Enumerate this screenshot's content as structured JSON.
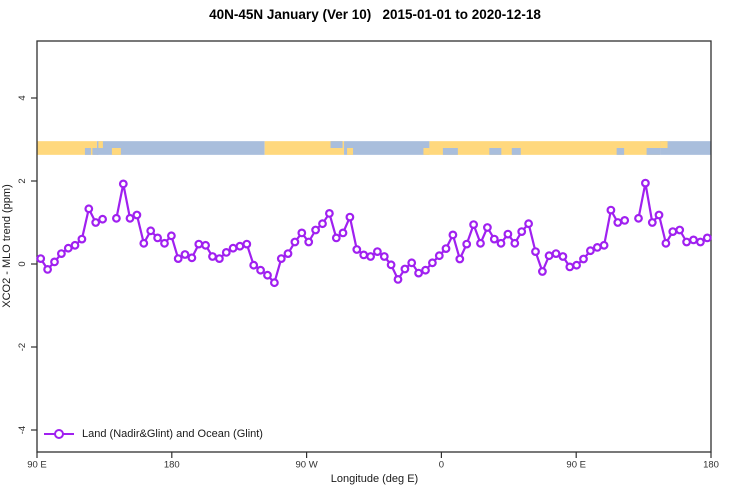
{
  "title": "40N-45N January (Ver 10)   2015-01-01 to 2020-12-18",
  "legend": {
    "label": "Land (Nadir&Glint) and Ocean (Glint)"
  },
  "colors": {
    "series": "#A020F0",
    "land": "#FFD87D",
    "ocean": "#A9BEDC",
    "axis": "#303030",
    "background": "#ffffff"
  },
  "chart_data": {
    "type": "line",
    "title": "40N-45N January (Ver 10)   2015-01-01 to 2020-12-18",
    "xlabel": "Longitude (deg E)",
    "ylabel": "XCO2 - MLO trend (ppm)",
    "xlim": [
      90,
      540
    ],
    "ylim": [
      -4.5,
      5.4
    ],
    "grid": false,
    "legend_position": "bottom-left-inside",
    "x_ticks": [
      {
        "value": 90,
        "label": "90 E"
      },
      {
        "value": 180,
        "label": "180"
      },
      {
        "value": 270,
        "label": "90 W"
      },
      {
        "value": 360,
        "label": "0"
      },
      {
        "value": 450,
        "label": "90 E"
      },
      {
        "value": 540,
        "label": "180"
      }
    ],
    "y_ticks": [
      {
        "value": 4,
        "label": "4"
      },
      {
        "value": 2,
        "label": "2"
      },
      {
        "value": 0,
        "label": "0"
      },
      {
        "value": -2,
        "label": "-2"
      },
      {
        "value": -4,
        "label": "-4"
      }
    ],
    "series": [
      {
        "name": "Land (Nadir&Glint) and Ocean (Glint)",
        "color": "#A020F0",
        "marker": "open-circle",
        "x": [
          92.5,
          97.1,
          101.7,
          106.3,
          110.9,
          115.4,
          120.0,
          124.6,
          129.2,
          133.8,
          138.4,
          143.0,
          147.6,
          152.1,
          156.7,
          161.3,
          165.9,
          170.5,
          175.1,
          179.7,
          184.3,
          188.8,
          193.4,
          198.0,
          202.6,
          207.2,
          211.8,
          216.4,
          220.9,
          225.5,
          230.1,
          234.7,
          239.3,
          243.9,
          248.5,
          253.1,
          257.6,
          262.2,
          266.8,
          271.4,
          276.0,
          280.6,
          285.2,
          289.8,
          294.3,
          298.9,
          303.5,
          308.1,
          312.7,
          317.3,
          321.9,
          326.4,
          331.0,
          335.6,
          340.2,
          344.8,
          349.4,
          354.0,
          358.6,
          363.1,
          367.7,
          372.3,
          376.9,
          381.5,
          386.1,
          390.7,
          395.3,
          399.8,
          404.4,
          409.0,
          413.6,
          418.2,
          422.8,
          427.4,
          431.9,
          436.5,
          441.1,
          445.7,
          450.3,
          454.9,
          459.5,
          464.1,
          468.6,
          473.2,
          477.8,
          482.4,
          487.0,
          491.6,
          496.2,
          500.8,
          505.3,
          509.9,
          514.5,
          519.1,
          523.7,
          528.3,
          532.9,
          537.5
        ],
        "y": [
          0.13,
          -0.13,
          0.05,
          0.25,
          0.38,
          0.45,
          0.6,
          1.33,
          1.0,
          1.08,
          null,
          1.1,
          1.93,
          1.1,
          1.18,
          0.5,
          0.8,
          0.63,
          0.5,
          0.68,
          0.13,
          0.23,
          0.15,
          0.48,
          0.45,
          0.18,
          0.13,
          0.28,
          0.38,
          0.43,
          0.48,
          -0.03,
          -0.15,
          -0.27,
          -0.45,
          0.13,
          0.25,
          0.53,
          0.75,
          0.53,
          0.82,
          0.97,
          1.22,
          0.63,
          0.75,
          1.13,
          0.35,
          0.22,
          0.18,
          0.3,
          0.18,
          -0.02,
          -0.37,
          -0.12,
          0.03,
          -0.22,
          -0.15,
          0.03,
          0.2,
          0.37,
          0.7,
          0.12,
          0.48,
          0.95,
          0.5,
          0.88,
          0.6,
          0.5,
          0.72,
          0.5,
          0.78,
          0.97,
          0.3,
          -0.18,
          0.2,
          0.25,
          0.18,
          -0.07,
          -0.03,
          0.12,
          0.32,
          0.4,
          0.45,
          1.3,
          1.0,
          1.05,
          null,
          1.1,
          1.95,
          1.0,
          1.18,
          0.5,
          0.78,
          0.82,
          0.53,
          0.58,
          0.53,
          0.63
        ]
      }
    ],
    "surface_band": {
      "description": "land/ocean strip",
      "y_range": [
        2.63,
        2.96
      ],
      "land_color": "#FFD87D",
      "ocean_color": "#A9BEDC",
      "segments": [
        {
          "from": 90,
          "to": 130,
          "surface": "land",
          "part": "full"
        },
        {
          "from": 130,
          "to": 242,
          "surface": "ocean",
          "part": "full"
        },
        {
          "from": 242,
          "to": 295,
          "surface": "land",
          "part": "full"
        },
        {
          "from": 295,
          "to": 352,
          "surface": "ocean",
          "part": "full"
        },
        {
          "from": 352,
          "to": 506,
          "surface": "land",
          "part": "full"
        },
        {
          "from": 506,
          "to": 540,
          "surface": "ocean",
          "part": "full"
        },
        {
          "from": 122,
          "to": 126,
          "surface": "ocean",
          "part": "bottom"
        },
        {
          "from": 127,
          "to": 131,
          "surface": "ocean",
          "part": "bottom"
        },
        {
          "from": 131,
          "to": 134,
          "surface": "land",
          "part": "top"
        },
        {
          "from": 140,
          "to": 146,
          "surface": "land",
          "part": "bottom"
        },
        {
          "from": 286,
          "to": 294,
          "surface": "ocean",
          "part": "top"
        },
        {
          "from": 297,
          "to": 301,
          "surface": "land",
          "part": "bottom"
        },
        {
          "from": 348,
          "to": 352,
          "surface": "land",
          "part": "bottom"
        },
        {
          "from": 361,
          "to": 371,
          "surface": "ocean",
          "part": "bottom"
        },
        {
          "from": 392,
          "to": 400,
          "surface": "ocean",
          "part": "bottom"
        },
        {
          "from": 407,
          "to": 413,
          "surface": "ocean",
          "part": "bottom"
        },
        {
          "from": 477,
          "to": 482,
          "surface": "ocean",
          "part": "bottom"
        },
        {
          "from": 497,
          "to": 506,
          "surface": "ocean",
          "part": "bottom"
        },
        {
          "from": 506,
          "to": 511,
          "surface": "land",
          "part": "top"
        }
      ]
    }
  }
}
